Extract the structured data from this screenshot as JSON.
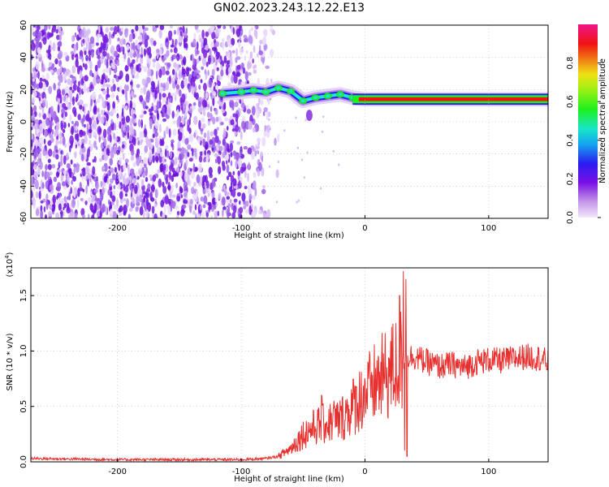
{
  "title": "GN02.2023.243.12.22.E13",
  "chart_data": [
    {
      "type": "heatmap",
      "xlabel": "Height of straight line (km)",
      "ylabel": "Frequency (Hz)",
      "xlim": [
        -270,
        148
      ],
      "ylim": [
        -60,
        60
      ],
      "xticks": [
        -200,
        -100,
        0,
        100
      ],
      "yticks": [
        -60,
        -40,
        -20,
        0,
        20,
        40,
        60
      ],
      "grid": "dashed",
      "colorbar": {
        "label": "Normalized spectral amplitude",
        "range": [
          0,
          1
        ],
        "ticks": [
          0.0,
          0.2,
          0.4,
          0.6,
          0.8
        ],
        "colormap": "rainbow (violet-blue-cyan-green-yellow-red-magenta)"
      },
      "features": {
        "noise_region_x": [
          -270,
          -85
        ],
        "noise_color": "#7a1fe0",
        "signal_band": [
          {
            "x": -115,
            "y": 17.5
          },
          {
            "x": -100,
            "y": 18.5
          },
          {
            "x": -90,
            "y": 19.5
          },
          {
            "x": -80,
            "y": 18.5
          },
          {
            "x": -70,
            "y": 21
          },
          {
            "x": -60,
            "y": 19
          },
          {
            "x": -50,
            "y": 13
          },
          {
            "x": -40,
            "y": 15
          },
          {
            "x": -30,
            "y": 16
          },
          {
            "x": -20,
            "y": 17
          },
          {
            "x": -10,
            "y": 15
          },
          {
            "x": 0,
            "y": 14
          },
          {
            "x": 20,
            "y": 14
          },
          {
            "x": 60,
            "y": 14
          },
          {
            "x": 100,
            "y": 14
          },
          {
            "x": 148,
            "y": 14
          }
        ],
        "steady_line_freq": 14,
        "steady_line_x": [
          -10,
          148
        ]
      }
    },
    {
      "type": "line",
      "xlabel": "Height of straight line (km)",
      "ylabel": "SNR (10 * v/v)",
      "yscale_label": "(x10",
      "yscale_exp": "4",
      "xlim": [
        -270,
        148
      ],
      "ylim": [
        0,
        1.75
      ],
      "xticks": [
        -200,
        -100,
        0,
        100
      ],
      "yticks": [
        0.0,
        0.5,
        1.0,
        1.5
      ],
      "ytick_labels": [
        "0.0",
        "0.5",
        "1.0",
        "1.5"
      ],
      "grid": "dashed",
      "series": [
        {
          "color": "#e8312e",
          "x": [
            -270,
            -200,
            -150,
            -100,
            -80,
            -70,
            -60,
            -50,
            -40,
            -30,
            -20,
            -10,
            0,
            10,
            20,
            30,
            35,
            40,
            50,
            60,
            70,
            80,
            90,
            100,
            110,
            120,
            130,
            140,
            148
          ],
          "y": [
            0.03,
            0.02,
            0.02,
            0.02,
            0.03,
            0.05,
            0.12,
            0.25,
            0.32,
            0.35,
            0.38,
            0.5,
            0.62,
            0.72,
            0.8,
            0.92,
            0.95,
            0.95,
            0.9,
            0.86,
            0.88,
            0.85,
            0.9,
            0.92,
            0.91,
            0.93,
            0.95,
            0.94,
            0.9
          ],
          "spikes": [
            {
              "x": 28,
              "y": 1.5
            },
            {
              "x": 31,
              "y": 1.72
            },
            {
              "x": 33,
              "y": 1.65
            },
            {
              "x": 34,
              "y": 0.05
            },
            {
              "x": 32,
              "y": 0.1
            },
            {
              "x": -25,
              "y": 0.55
            },
            {
              "x": -35,
              "y": 0.6
            },
            {
              "x": 5,
              "y": 0.78
            }
          ]
        }
      ]
    }
  ]
}
